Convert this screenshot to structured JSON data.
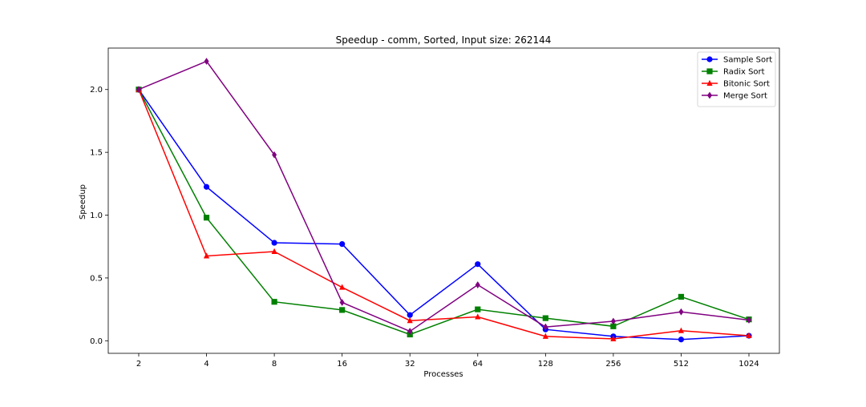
{
  "chart_data": {
    "type": "line",
    "title": "Speedup - comm, Sorted, Input size: 262144",
    "xlabel": "Processes",
    "ylabel": "Speedup",
    "categories": [
      "2",
      "4",
      "8",
      "16",
      "32",
      "64",
      "128",
      "256",
      "512",
      "1024"
    ],
    "ylim": [
      -0.1,
      2.33
    ],
    "yticks": [
      "0.0",
      "0.5",
      "1.0",
      "1.5",
      "2.0"
    ],
    "grid": false,
    "legend_position": "top-right",
    "series": [
      {
        "name": "Sample Sort",
        "color": "#0000ff",
        "marker": "circle",
        "values": [
          2.0,
          1.225,
          0.78,
          0.77,
          0.205,
          0.61,
          0.09,
          0.035,
          0.01,
          0.04
        ]
      },
      {
        "name": "Radix Sort",
        "color": "#008000",
        "marker": "square",
        "values": [
          2.0,
          0.98,
          0.31,
          0.245,
          0.05,
          0.25,
          0.18,
          0.115,
          0.35,
          0.17
        ]
      },
      {
        "name": "Bitonic Sort",
        "color": "#ff0000",
        "marker": "triangle",
        "values": [
          2.0,
          0.675,
          0.71,
          0.425,
          0.16,
          0.19,
          0.035,
          0.015,
          0.08,
          0.04
        ]
      },
      {
        "name": "Merge Sort",
        "color": "#800080",
        "marker": "diamond",
        "values": [
          2.0,
          2.225,
          1.48,
          0.305,
          0.075,
          0.445,
          0.11,
          0.155,
          0.23,
          0.165
        ]
      }
    ]
  }
}
